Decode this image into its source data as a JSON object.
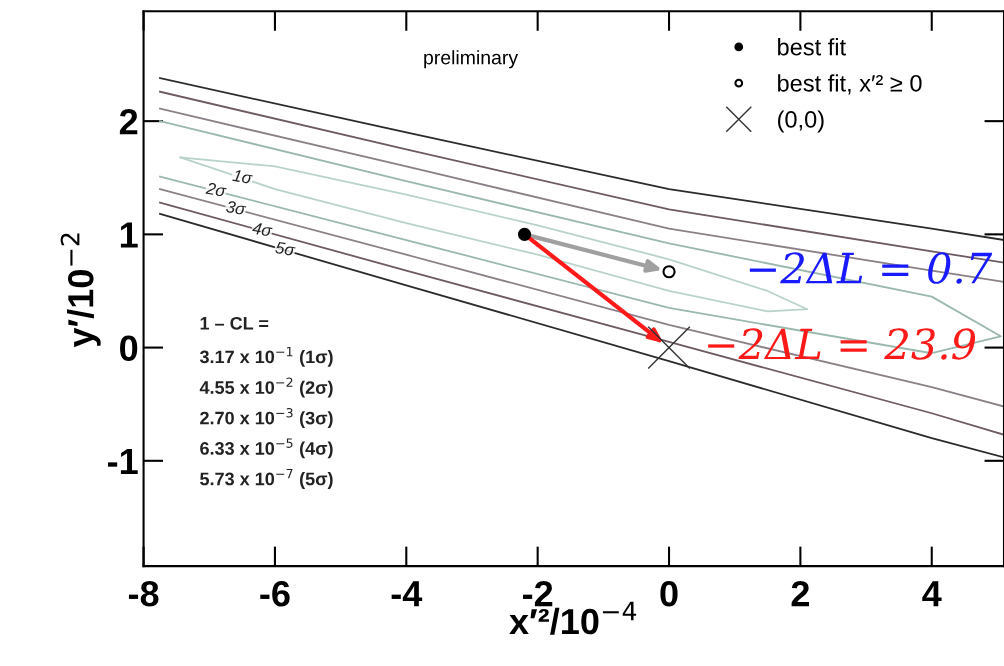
{
  "chart_data": {
    "type": "line",
    "subtitle": "preliminary",
    "xlabel": "x′²/10$^{−4}$",
    "ylabel": "y′/10$^{−2}$",
    "xlim": [
      -8,
      5.1
    ],
    "ylim": [
      -1.93,
      2.97
    ],
    "xticks": [
      -8,
      -6,
      -4,
      -2,
      0,
      2,
      4
    ],
    "yticks": [
      -1,
      0,
      1,
      2
    ],
    "grid": false,
    "legend": "top right",
    "series": [
      {
        "color": "#2b2b2b",
        "x": [
          -7.75,
          -4,
          0,
          4,
          5.1
        ],
        "values": [
          2.38,
          1.9,
          1.4,
          1.05,
          0.95
        ]
      },
      {
        "color": "#2b2b2b",
        "x": [
          -7.75,
          -4,
          0,
          4,
          5.1
        ],
        "values": [
          1.18,
          0.55,
          -0.12,
          -0.8,
          -0.97
        ]
      },
      {
        "color": "#6e5a62",
        "x": [
          -7.75,
          -4,
          0,
          4,
          5.1
        ],
        "values": [
          2.26,
          1.75,
          1.22,
          0.85,
          0.75
        ]
      },
      {
        "color": "#6e5a62",
        "x": [
          -7.75,
          -4,
          0,
          4,
          5.1
        ],
        "values": [
          1.28,
          0.68,
          0.05,
          -0.58,
          -0.77
        ]
      },
      {
        "color": "#8c8088",
        "x": [
          -7.75,
          -4,
          0,
          4,
          5.1
        ],
        "values": [
          2.11,
          1.6,
          1.05,
          0.68,
          0.58
        ]
      },
      {
        "color": "#8c8088",
        "x": [
          -7.75,
          -4,
          0,
          4,
          5.1
        ],
        "values": [
          1.4,
          0.82,
          0.2,
          -0.35,
          -0.52
        ]
      },
      {
        "color": "#9ab8ac",
        "x": [
          -7.75,
          -4,
          0,
          4,
          5.05,
          4,
          0,
          -4,
          -7.75
        ],
        "values": [
          2.0,
          1.47,
          0.92,
          0.45,
          0.1,
          -0.05,
          0.35,
          0.95,
          1.51
        ]
      },
      {
        "color": "#b9d3c9",
        "x": [
          -7.44,
          -6,
          -4,
          -2,
          0,
          1.5,
          2.1
        ],
        "values": [
          1.68,
          1.6,
          1.35,
          1.08,
          0.78,
          0.5,
          0.34
        ]
      },
      {
        "color": "#b9d3c9",
        "x": [
          -7.44,
          -6,
          -4,
          -2,
          0,
          1.5,
          2.1
        ],
        "values": [
          1.68,
          1.4,
          1.1,
          0.82,
          0.5,
          0.32,
          0.34
        ]
      },
      {
        "type": "scatter",
        "name": "best fit",
        "color": "#000000",
        "marker": "circle",
        "x": [
          -2.2
        ],
        "values": [
          1.0
        ]
      },
      {
        "type": "scatter",
        "name": "best fit, x′² ≥ 0",
        "color": "#ffffff",
        "marker": "circle",
        "x": [
          0
        ],
        "values": [
          0.67
        ]
      },
      {
        "type": "scatter",
        "name": "(0,0)",
        "color": "#333333",
        "marker": "cross",
        "x": [
          0
        ],
        "values": [
          0.0
        ]
      }
    ],
    "annotations": [
      "1σ",
      "2σ",
      "3σ",
      "4σ",
      "5σ",
      {
        "text": "−2ΔL = 0.7",
        "x": 0,
        "y": 0.67
      },
      {
        "text": "−2ΔL = 23.9",
        "x": 0,
        "y": 0.0
      },
      "1 – CL =",
      "3.17 x 10$^{−1}$ (1σ)",
      "4.55 x 10$^{−2}$ (2σ)",
      "2.70 x 10$^{−3}$ (3σ)",
      "6.33 x 10$^{−5}$ (4σ)",
      "5.73 x 10$^{−7}$ (5σ)"
    ]
  }
}
